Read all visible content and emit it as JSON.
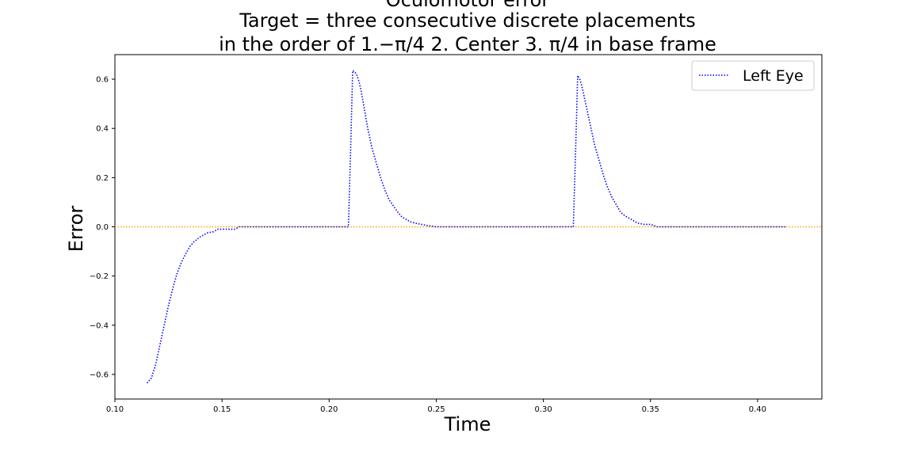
{
  "chart_data": {
    "type": "line",
    "title_lines": [
      "Oculomotor error",
      "Target = three consecutive discrete placements",
      "in the order of 1.−π/4  2. Center 3. π/4 in base frame"
    ],
    "xlabel": "Time",
    "ylabel": "Error",
    "xlim": [
      0.1,
      0.43
    ],
    "ylim": [
      -0.7,
      0.7
    ],
    "x_ticks": [
      0.1,
      0.15,
      0.2,
      0.25,
      0.3,
      0.35,
      0.4
    ],
    "x_tick_labels": [
      "0.10",
      "0.15",
      "0.20",
      "0.25",
      "0.30",
      "0.35",
      "0.40"
    ],
    "y_ticks": [
      -0.6,
      -0.4,
      -0.2,
      0.0,
      0.2,
      0.4,
      0.6
    ],
    "y_tick_labels": [
      "−0.6",
      "−0.4",
      "−0.2",
      "0.0",
      "0.2",
      "0.4",
      "0.6"
    ],
    "grid": false,
    "legend_position": "top-right",
    "series": [
      {
        "name": "Left Eye",
        "color": "#0000ff",
        "style": "dotted",
        "points": [
          [
            0.115,
            -0.635
          ],
          [
            0.117,
            -0.615
          ],
          [
            0.119,
            -0.56
          ],
          [
            0.121,
            -0.48
          ],
          [
            0.123,
            -0.4
          ],
          [
            0.125,
            -0.32
          ],
          [
            0.127,
            -0.25
          ],
          [
            0.129,
            -0.19
          ],
          [
            0.131,
            -0.145
          ],
          [
            0.133,
            -0.11
          ],
          [
            0.135,
            -0.08
          ],
          [
            0.137,
            -0.06
          ],
          [
            0.14,
            -0.04
          ],
          [
            0.143,
            -0.025
          ],
          [
            0.146,
            -0.02
          ],
          [
            0.148,
            -0.01
          ],
          [
            0.152,
            -0.01
          ],
          [
            0.156,
            -0.01
          ],
          [
            0.158,
            0.0
          ],
          [
            0.165,
            0.0
          ],
          [
            0.18,
            0.0
          ],
          [
            0.195,
            0.0
          ],
          [
            0.209,
            0.0
          ],
          [
            0.21,
            0.3
          ],
          [
            0.211,
            0.635
          ],
          [
            0.212,
            0.63
          ],
          [
            0.213,
            0.615
          ],
          [
            0.214,
            0.59
          ],
          [
            0.215,
            0.55
          ],
          [
            0.216,
            0.5
          ],
          [
            0.217,
            0.45
          ],
          [
            0.218,
            0.4
          ],
          [
            0.219,
            0.36
          ],
          [
            0.22,
            0.32
          ],
          [
            0.222,
            0.26
          ],
          [
            0.224,
            0.2
          ],
          [
            0.226,
            0.15
          ],
          [
            0.228,
            0.11
          ],
          [
            0.23,
            0.085
          ],
          [
            0.232,
            0.06
          ],
          [
            0.234,
            0.04
          ],
          [
            0.236,
            0.03
          ],
          [
            0.238,
            0.02
          ],
          [
            0.24,
            0.015
          ],
          [
            0.243,
            0.01
          ],
          [
            0.246,
            0.005
          ],
          [
            0.25,
            0.0
          ],
          [
            0.26,
            0.0
          ],
          [
            0.28,
            0.0
          ],
          [
            0.3,
            0.0
          ],
          [
            0.314,
            0.0
          ],
          [
            0.315,
            0.3
          ],
          [
            0.316,
            0.615
          ],
          [
            0.317,
            0.6
          ],
          [
            0.318,
            0.57
          ],
          [
            0.319,
            0.53
          ],
          [
            0.32,
            0.49
          ],
          [
            0.321,
            0.45
          ],
          [
            0.322,
            0.41
          ],
          [
            0.323,
            0.37
          ],
          [
            0.324,
            0.33
          ],
          [
            0.326,
            0.27
          ],
          [
            0.328,
            0.21
          ],
          [
            0.33,
            0.16
          ],
          [
            0.332,
            0.12
          ],
          [
            0.334,
            0.09
          ],
          [
            0.336,
            0.06
          ],
          [
            0.338,
            0.045
          ],
          [
            0.34,
            0.035
          ],
          [
            0.342,
            0.025
          ],
          [
            0.344,
            0.015
          ],
          [
            0.347,
            0.01
          ],
          [
            0.35,
            0.01
          ],
          [
            0.353,
            0.0
          ],
          [
            0.36,
            0.0
          ],
          [
            0.38,
            0.0
          ],
          [
            0.4,
            0.0
          ],
          [
            0.413,
            0.0
          ]
        ]
      }
    ],
    "reference_line": {
      "y": 0.0,
      "color": "#ffa500",
      "style": "dotted"
    }
  }
}
